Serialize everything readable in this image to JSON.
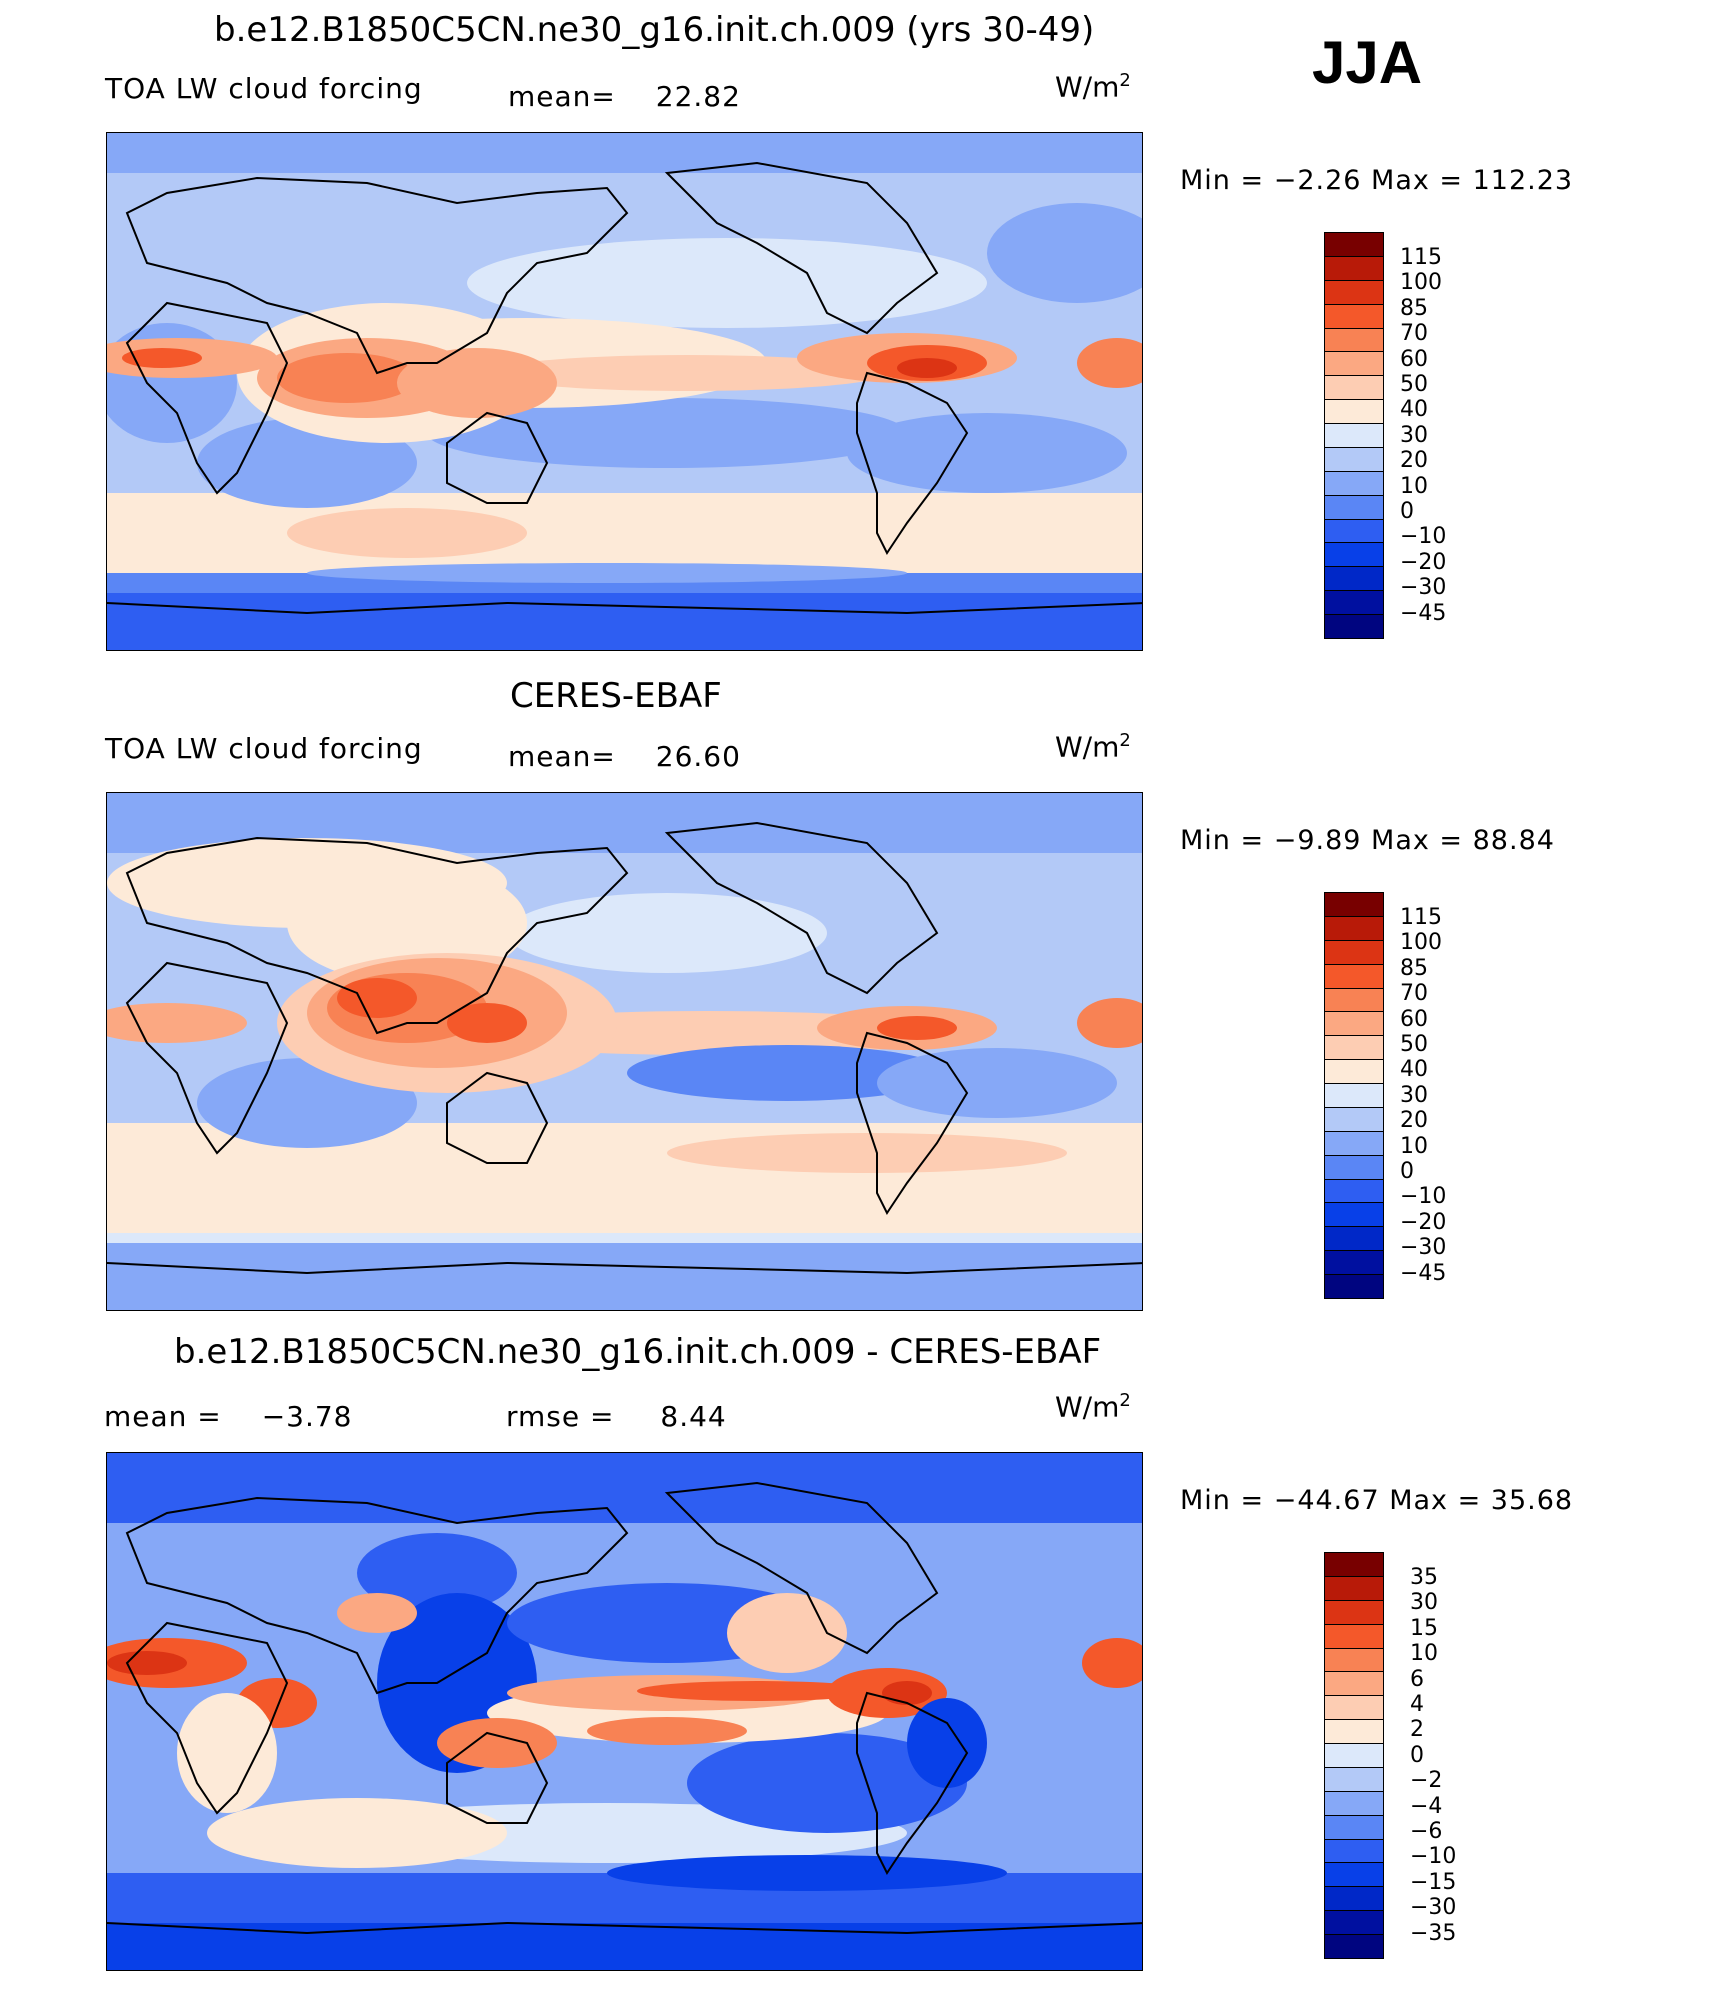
{
  "season": "JJA",
  "palettes": {
    "clim": [
      "#000580",
      "#0010A0",
      "#0028C8",
      "#0840E8",
      "#2E5EF2",
      "#5A86F5",
      "#86A8F7",
      "#B3C9F7",
      "#DCE8FA",
      "#FDEAD8",
      "#FDCDB3",
      "#FBA882",
      "#F88254",
      "#F4582A",
      "#DC3414",
      "#B81A08",
      "#780000"
    ],
    "diff": [
      "#000580",
      "#0010A0",
      "#0028C8",
      "#0840E8",
      "#2E5EF2",
      "#5A86F5",
      "#86A8F7",
      "#B3C9F7",
      "#DCE8FA",
      "#FDEAD8",
      "#FDCDB3",
      "#FBA882",
      "#F88254",
      "#F4582A",
      "#DC3414",
      "#B81A08",
      "#780000"
    ]
  },
  "panels": [
    {
      "title": "b.e12.B1850C5CN.ne30_g16.init.ch.009 (yrs 30-49)",
      "left_label": "TOA LW cloud forcing",
      "center_label": "mean=",
      "center_value": "22.82",
      "units_base": "W/m",
      "units_exp": "2",
      "minmax": "Min =   −2.26 Max =  112.23",
      "colorbar_labels": [
        "115",
        "100",
        "85",
        "70",
        "60",
        "50",
        "40",
        "30",
        "20",
        "10",
        "0",
        "−10",
        "−20",
        "−30",
        "−45"
      ],
      "palette": "clim"
    },
    {
      "title": "CERES-EBAF",
      "left_label": "TOA LW cloud forcing",
      "center_label": "mean=",
      "center_value": "26.60",
      "units_base": "W/m",
      "units_exp": "2",
      "minmax": "Min =   −9.89 Max =   88.84",
      "colorbar_labels": [
        "115",
        "100",
        "85",
        "70",
        "60",
        "50",
        "40",
        "30",
        "20",
        "10",
        "0",
        "−10",
        "−20",
        "−30",
        "−45"
      ],
      "palette": "clim"
    },
    {
      "title": "b.e12.B1850C5CN.ne30_g16.init.ch.009 - CERES-EBAF",
      "left_label": "mean =",
      "left_value": "−3.78",
      "center_label": "rmse =",
      "center_value": "8.44",
      "units_base": "W/m",
      "units_exp": "2",
      "minmax": "Min = −44.67 Max =   35.68",
      "colorbar_labels": [
        "35",
        "30",
        "15",
        "10",
        "6",
        "4",
        "2",
        "0",
        "−2",
        "−4",
        "−6",
        "−10",
        "−15",
        "−30",
        "−35"
      ],
      "palette": "diff"
    }
  ]
}
